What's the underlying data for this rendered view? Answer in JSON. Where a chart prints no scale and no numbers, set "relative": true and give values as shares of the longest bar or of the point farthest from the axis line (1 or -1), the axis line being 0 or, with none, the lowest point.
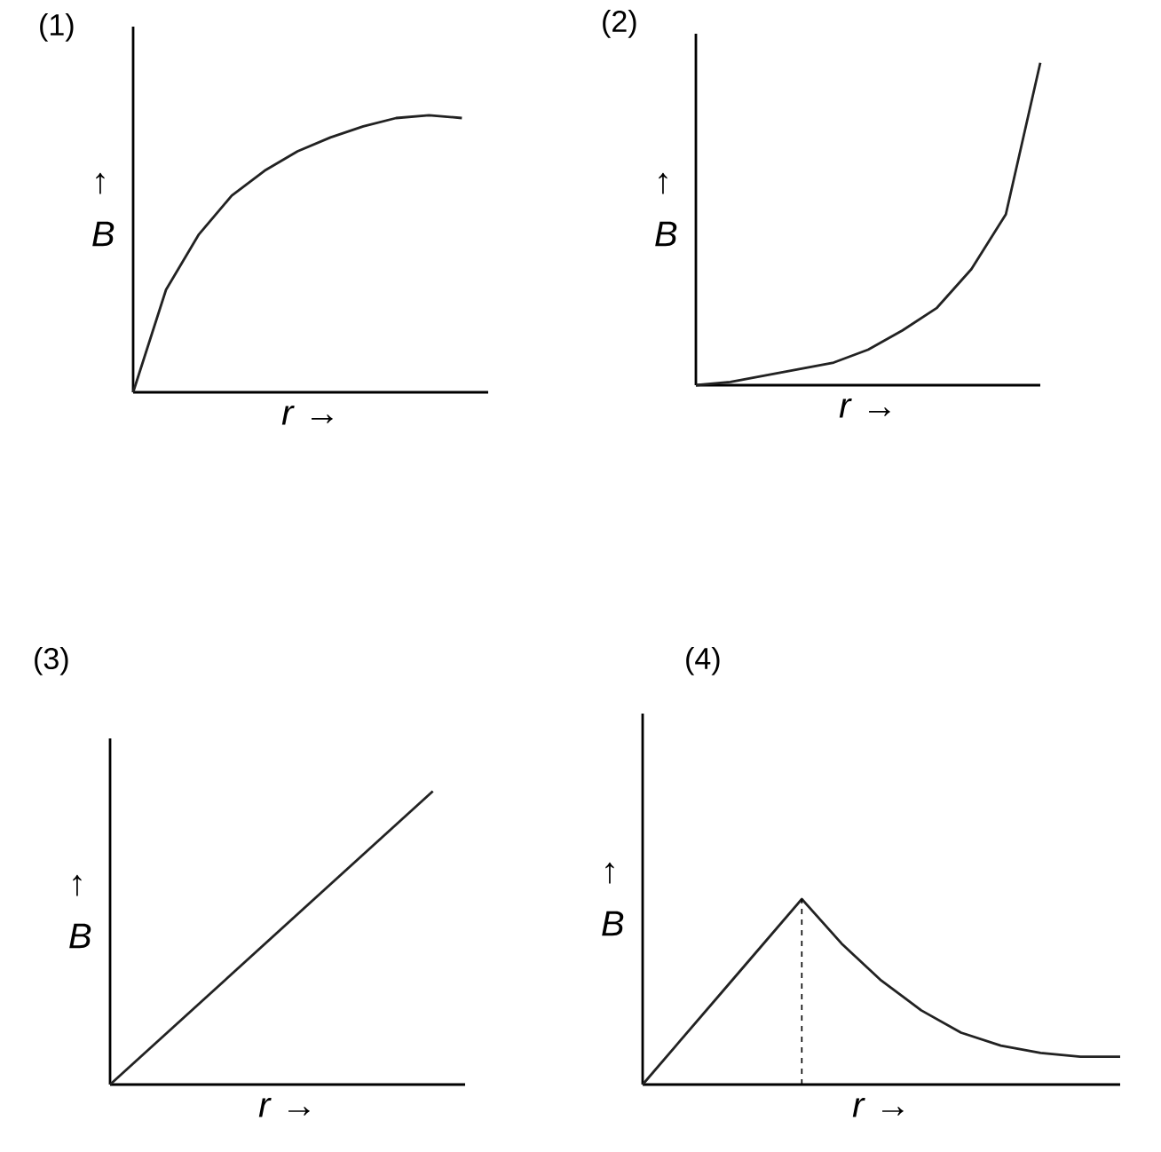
{
  "chart_data": [
    {
      "type": "line",
      "title": "(1)",
      "xlabel": "*r* →",
      "ylabel": "↑ *B*",
      "relative": true,
      "marker": "none",
      "line_style": "solid",
      "categories": [
        null,
        null,
        null,
        null,
        null,
        null,
        null,
        null,
        null,
        null,
        null
      ],
      "values": [
        0,
        0.37,
        0.57,
        0.71,
        0.8,
        0.87,
        0.92,
        0.96,
        0.99,
        1,
        0.99
      ],
      "color": "#222222"
    },
    {
      "type": "line",
      "title": "(2)",
      "xlabel": "*r* →",
      "ylabel": "↑ *B*",
      "relative": true,
      "marker": "none",
      "line_style": "solid",
      "categories": [
        null,
        null,
        null,
        null,
        null,
        null,
        null,
        null,
        null,
        null,
        null
      ],
      "values": [
        0,
        0.01,
        0.03,
        0.05,
        0.07,
        0.11,
        0.17,
        0.24,
        0.36,
        0.53,
        1
      ],
      "color": "#222222"
    },
    {
      "type": "line",
      "title": "(3)",
      "xlabel": "*r* →",
      "ylabel": "↑ *B*",
      "relative": true,
      "marker": "none",
      "line_style": "solid",
      "categories": [
        null,
        null,
        null,
        null,
        null
      ],
      "values": [
        0,
        0.25,
        0.5,
        0.75,
        1
      ],
      "color": "#222222"
    },
    {
      "type": "line",
      "title": "(4)",
      "xlabel": "*r* →",
      "ylabel": "↑ *B*",
      "relative": true,
      "marker": "none",
      "line_style": "solid",
      "categories": [
        null,
        null,
        null,
        null,
        null,
        null,
        null,
        null,
        null,
        null,
        null,
        null,
        null
      ],
      "values": [
        0,
        0.25,
        0.5,
        0.75,
        1,
        0.76,
        0.56,
        0.4,
        0.28,
        0.21,
        0.17,
        0.15,
        0.15
      ],
      "color": "#222222"
    }
  ]
}
